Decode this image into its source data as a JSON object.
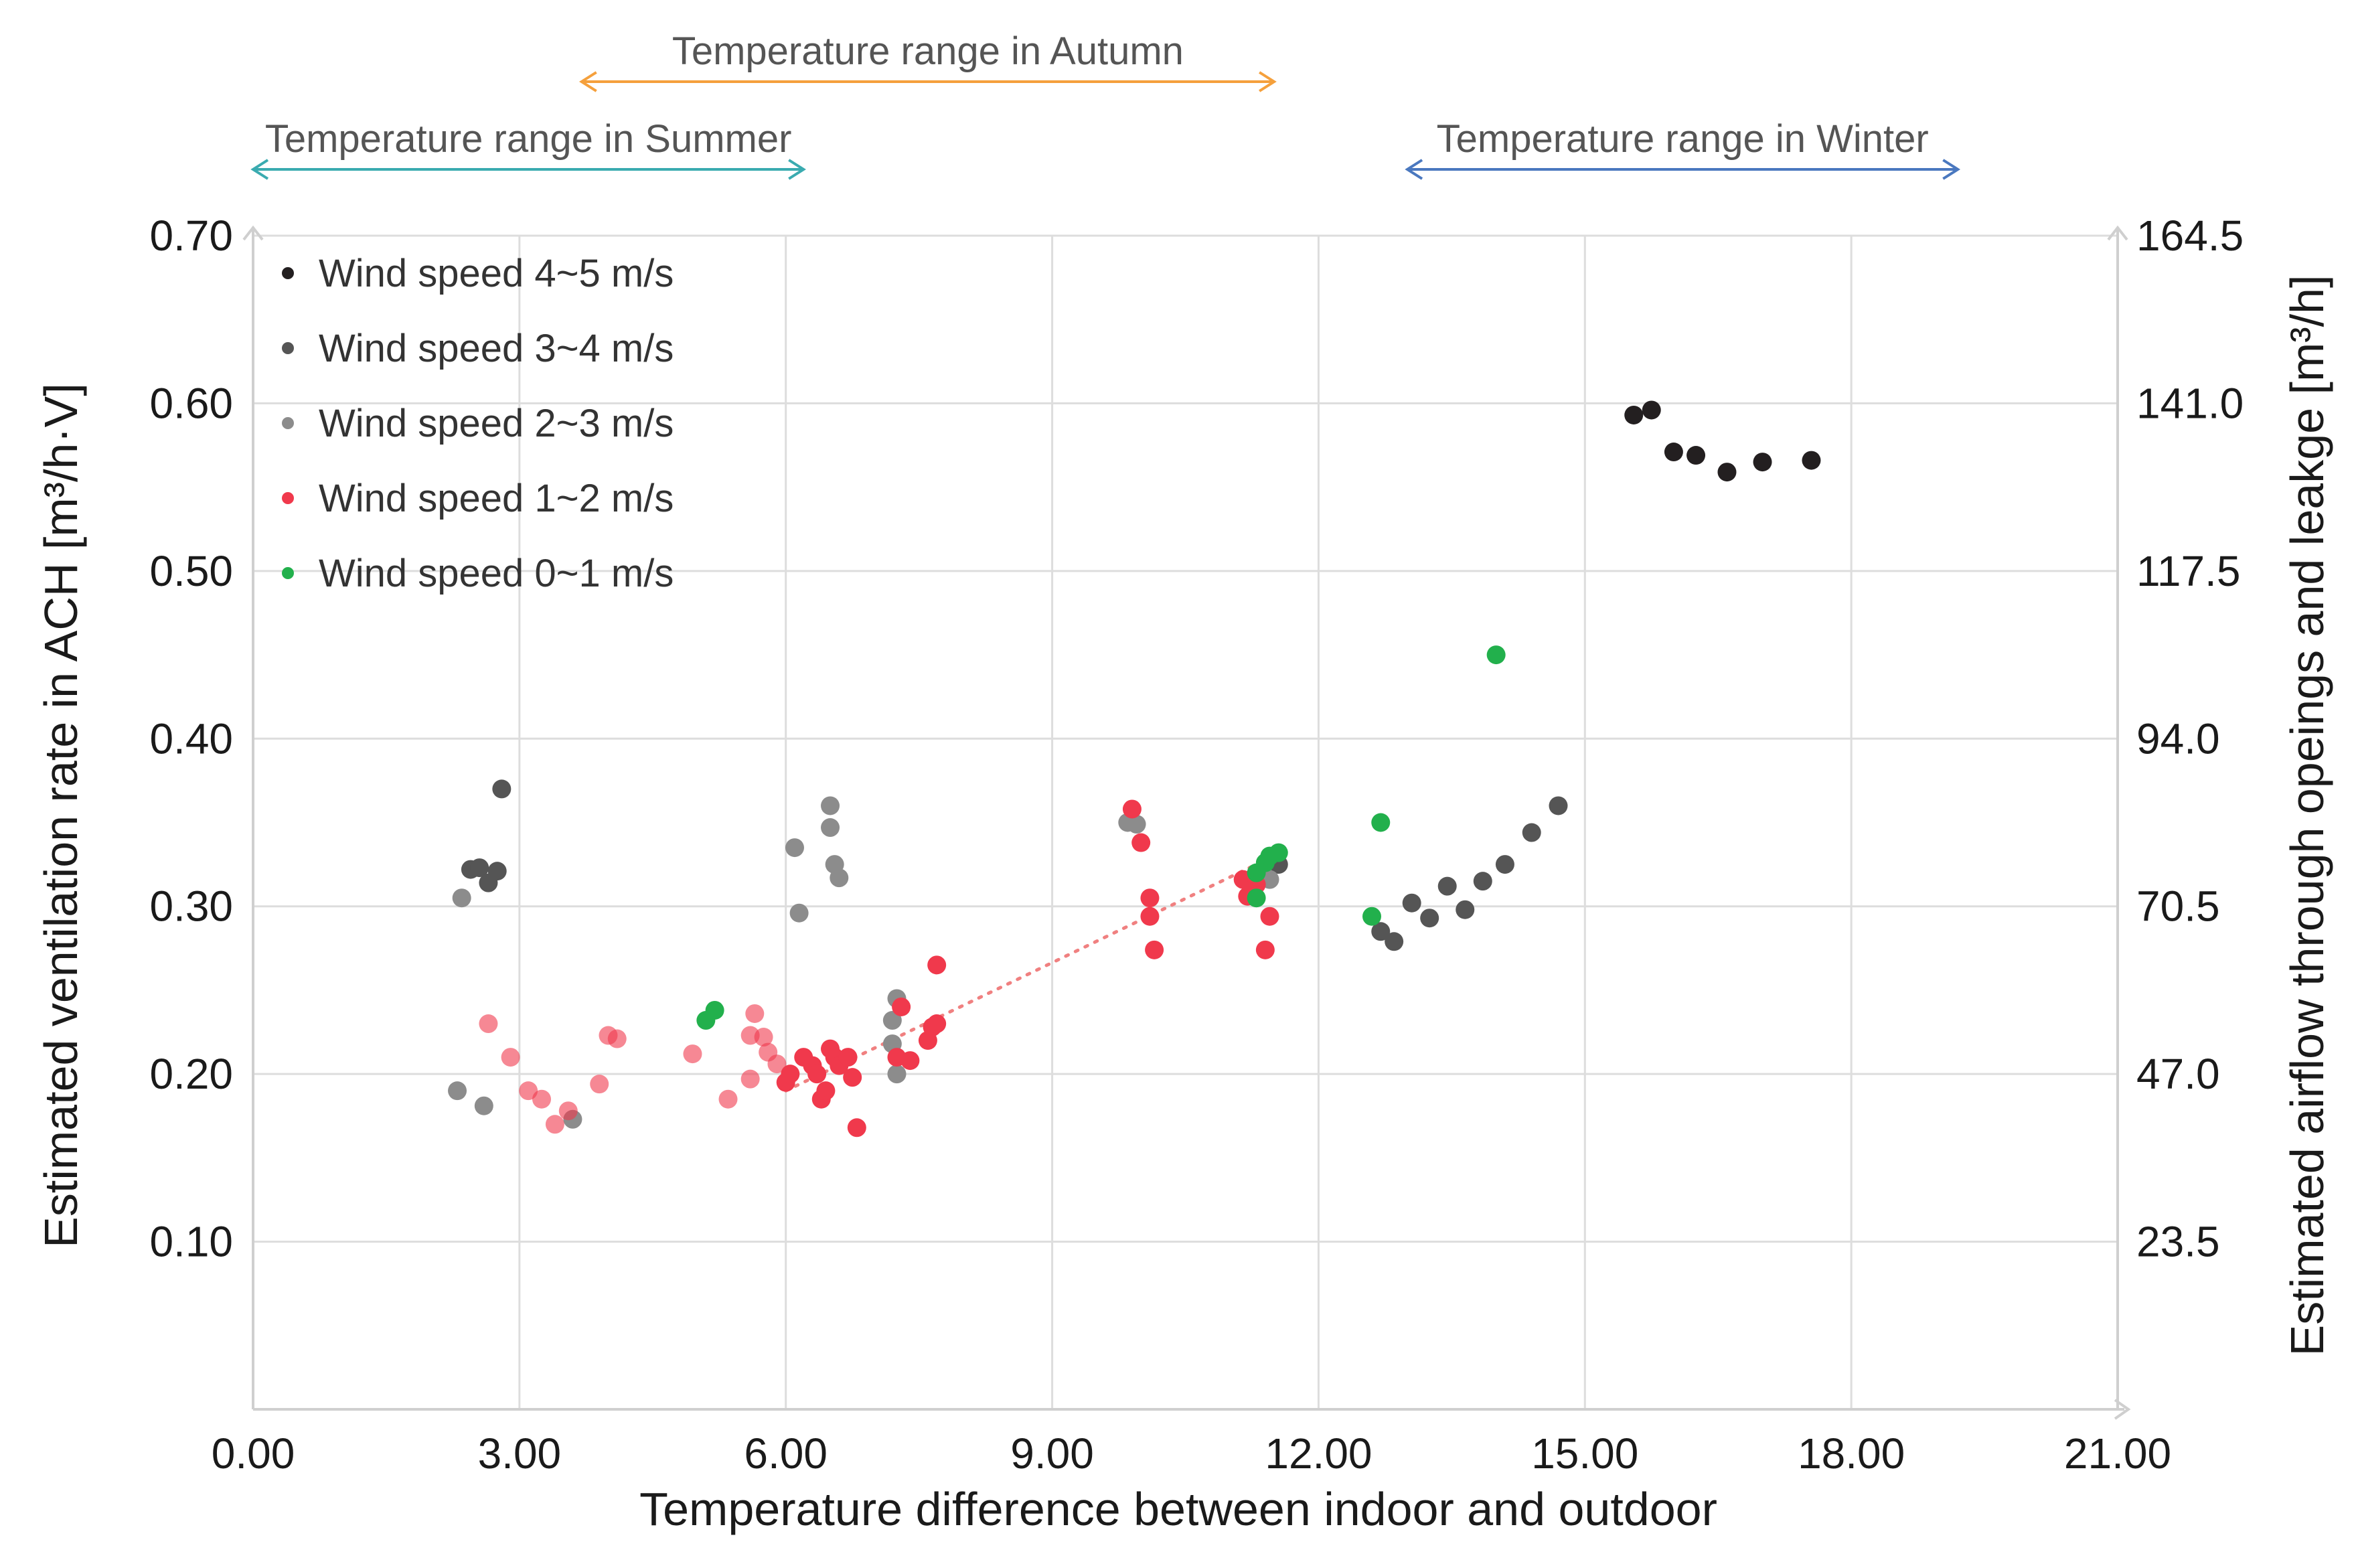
{
  "chart_data": {
    "type": "scatter",
    "xlabel": "Temperature difference between indoor and outdoor",
    "ylabel": "Estimated ventilation rate in ACH [m³/h·V]",
    "y2label": "Estimated airflow through opeings and leakge [m³/h]",
    "xlim": [
      0,
      21
    ],
    "ylim": [
      0,
      0.7
    ],
    "y2lim": [
      0,
      164.5
    ],
    "x_ticks": [
      0,
      3,
      6,
      9,
      12,
      15,
      18,
      21
    ],
    "x_tick_labels": [
      "0.00",
      "3.00",
      "6.00",
      "9.00",
      "12.00",
      "15.00",
      "18.00",
      "21.00"
    ],
    "y_ticks": [
      0.1,
      0.2,
      0.3,
      0.4,
      0.5,
      0.6,
      0.7
    ],
    "y_tick_labels": [
      "0.10",
      "0.20",
      "0.30",
      "0.40",
      "0.50",
      "0.60",
      "0.70"
    ],
    "y2_ticks": [
      23.5,
      47.0,
      70.5,
      94.0,
      117.5,
      141.0,
      164.5
    ],
    "y2_tick_labels": [
      "23.5",
      "47.0",
      "70.5",
      "94.0",
      "117.5",
      "141.0",
      "164.5"
    ],
    "grid": true,
    "legend_position": "top-left",
    "temperature_ranges": [
      {
        "label": "Temperature range in Autumn",
        "x_start": 3.7,
        "x_end": 11.5,
        "level": 1,
        "color": "#f5a03c"
      },
      {
        "label": "Temperature range in Summer",
        "x_start": 0.0,
        "x_end": 6.2,
        "level": 2,
        "color": "#3aabb0"
      },
      {
        "label": "Temperature range in Winter",
        "x_start": 13.0,
        "x_end": 19.2,
        "level": 2,
        "color": "#4a78bf"
      }
    ],
    "trendline": {
      "color": "#f08080",
      "points": [
        [
          6.0,
          0.19
        ],
        [
          11.3,
          0.325
        ]
      ]
    },
    "series": [
      {
        "name": "Wind speed 4~5 m/s",
        "color": "#231f20",
        "points": [
          [
            15.55,
            0.593
          ],
          [
            15.75,
            0.596
          ],
          [
            16.0,
            0.571
          ],
          [
            16.25,
            0.569
          ],
          [
            16.6,
            0.559
          ],
          [
            17.0,
            0.565
          ],
          [
            17.55,
            0.566
          ]
        ]
      },
      {
        "name": "Wind speed 3~4 m/s",
        "color": "#555555",
        "points": [
          [
            2.45,
            0.322
          ],
          [
            2.55,
            0.323
          ],
          [
            2.65,
            0.314
          ],
          [
            2.75,
            0.321
          ],
          [
            2.8,
            0.37
          ],
          [
            12.7,
            0.285
          ],
          [
            12.85,
            0.279
          ],
          [
            13.05,
            0.302
          ],
          [
            13.25,
            0.293
          ],
          [
            13.45,
            0.312
          ],
          [
            13.65,
            0.298
          ],
          [
            13.85,
            0.315
          ],
          [
            14.1,
            0.325
          ],
          [
            14.4,
            0.344
          ],
          [
            14.7,
            0.36
          ],
          [
            11.55,
            0.325
          ]
        ]
      },
      {
        "name": "Wind speed 2~3 m/s",
        "color": "#8c8c8c",
        "points": [
          [
            2.35,
            0.305
          ],
          [
            2.3,
            0.19
          ],
          [
            2.6,
            0.181
          ],
          [
            3.6,
            0.173
          ],
          [
            6.1,
            0.335
          ],
          [
            6.15,
            0.296
          ],
          [
            6.5,
            0.36
          ],
          [
            6.5,
            0.347
          ],
          [
            6.55,
            0.325
          ],
          [
            6.6,
            0.317
          ],
          [
            7.25,
            0.245
          ],
          [
            7.2,
            0.232
          ],
          [
            7.2,
            0.218
          ],
          [
            7.25,
            0.2
          ],
          [
            9.85,
            0.35
          ],
          [
            9.95,
            0.349
          ],
          [
            11.45,
            0.316
          ]
        ]
      },
      {
        "name": "Wind speed 1~2 m/s",
        "color": "#f0394c",
        "points": [
          [
            2.65,
            0.23
          ],
          [
            2.9,
            0.21
          ],
          [
            3.1,
            0.19
          ],
          [
            3.25,
            0.185
          ],
          [
            3.4,
            0.17
          ],
          [
            3.55,
            0.178
          ],
          [
            3.9,
            0.194
          ],
          [
            4.0,
            0.223
          ],
          [
            4.1,
            0.221
          ],
          [
            4.95,
            0.212
          ],
          [
            5.35,
            0.185
          ],
          [
            5.6,
            0.223
          ],
          [
            5.65,
            0.236
          ],
          [
            5.6,
            0.197
          ],
          [
            5.75,
            0.222
          ],
          [
            5.8,
            0.213
          ],
          [
            5.9,
            0.206
          ],
          [
            6.0,
            0.195
          ],
          [
            6.05,
            0.2
          ],
          [
            6.2,
            0.21
          ],
          [
            6.3,
            0.205
          ],
          [
            6.35,
            0.2
          ],
          [
            6.4,
            0.185
          ],
          [
            6.45,
            0.19
          ],
          [
            6.5,
            0.215
          ],
          [
            6.55,
            0.21
          ],
          [
            6.6,
            0.205
          ],
          [
            6.7,
            0.21
          ],
          [
            6.75,
            0.198
          ],
          [
            6.8,
            0.168
          ],
          [
            7.3,
            0.24
          ],
          [
            7.25,
            0.21
          ],
          [
            7.4,
            0.208
          ],
          [
            7.6,
            0.22
          ],
          [
            7.65,
            0.228
          ],
          [
            7.7,
            0.23
          ],
          [
            7.7,
            0.265
          ],
          [
            9.9,
            0.358
          ],
          [
            10.0,
            0.338
          ],
          [
            10.1,
            0.305
          ],
          [
            10.1,
            0.294
          ],
          [
            10.15,
            0.274
          ],
          [
            11.15,
            0.316
          ],
          [
            11.2,
            0.306
          ],
          [
            11.25,
            0.31
          ],
          [
            11.3,
            0.313
          ],
          [
            11.4,
            0.274
          ],
          [
            11.45,
            0.294
          ]
        ]
      },
      {
        "name": "Wind speed 0~1 m/s",
        "color": "#22b04c",
        "points": [
          [
            5.1,
            0.232
          ],
          [
            5.2,
            0.238
          ],
          [
            11.3,
            0.305
          ],
          [
            11.3,
            0.32
          ],
          [
            11.4,
            0.326
          ],
          [
            11.45,
            0.33
          ],
          [
            11.55,
            0.332
          ],
          [
            12.6,
            0.294
          ],
          [
            12.7,
            0.35
          ],
          [
            14.0,
            0.45
          ]
        ]
      }
    ]
  }
}
